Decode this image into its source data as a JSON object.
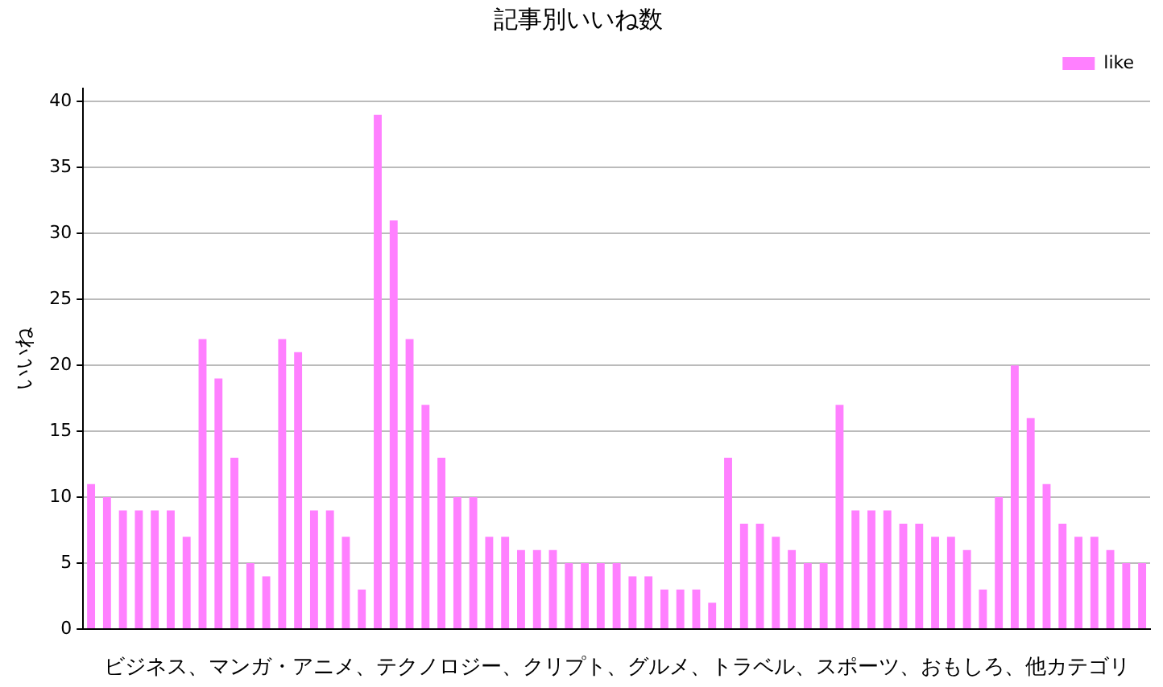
{
  "chart_data": {
    "type": "bar",
    "title": "記事別いいね数",
    "xlabel": "ビジネス、マンガ・アニメ、テクノロジー、クリプト、グルメ、トラベル、スポーツ、おもしろ、他カテゴリ",
    "ylabel": "いいね",
    "categories": [
      null,
      null,
      null,
      null,
      null,
      null,
      null,
      null,
      null,
      null,
      null,
      null,
      null,
      null,
      null,
      null,
      null,
      null,
      null,
      null,
      null,
      null,
      null,
      null,
      null,
      null,
      null,
      null,
      null,
      null,
      null,
      null,
      null,
      null,
      null,
      null,
      null,
      null,
      null,
      null,
      null,
      null,
      null,
      null,
      null,
      null,
      null,
      null,
      null,
      null,
      null,
      null,
      null,
      null,
      null,
      null,
      null,
      null,
      null,
      null,
      null,
      null,
      null,
      null,
      null,
      null,
      null
    ],
    "series": [
      {
        "name": "like",
        "color": "#ff80ff",
        "values": [
          11,
          10,
          9,
          9,
          9,
          9,
          7,
          22,
          19,
          13,
          5,
          4,
          22,
          21,
          9,
          9,
          7,
          3,
          39,
          31,
          22,
          17,
          13,
          10,
          10,
          7,
          7,
          6,
          6,
          6,
          5,
          5,
          5,
          5,
          4,
          4,
          3,
          3,
          3,
          2,
          13,
          8,
          8,
          7,
          6,
          5,
          5,
          17,
          9,
          9,
          9,
          8,
          8,
          7,
          7,
          6,
          3,
          10,
          20,
          16,
          11,
          8,
          7,
          7,
          6,
          5,
          5
        ]
      }
    ],
    "ylim": [
      0,
      41
    ],
    "yticks": [
      0,
      5,
      10,
      15,
      20,
      25,
      30,
      35,
      40
    ],
    "grid": "y",
    "legend": "top right"
  }
}
